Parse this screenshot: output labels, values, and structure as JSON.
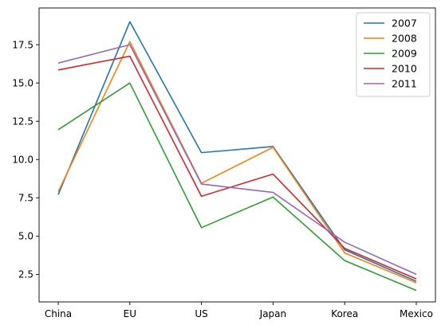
{
  "chart_data": {
    "type": "line",
    "title": "",
    "xlabel": "",
    "ylabel": "",
    "categories": [
      "China",
      "EU",
      "US",
      "Japan",
      "Korea",
      "Mexico"
    ],
    "ylim": [
      0.7,
      19.9
    ],
    "yticks": [
      2.5,
      5.0,
      7.5,
      10.0,
      12.5,
      15.0,
      17.5
    ],
    "ytick_labels": [
      "2.5",
      "5.0",
      "7.5",
      "10.0",
      "12.5",
      "15.0",
      "17.5"
    ],
    "grid": false,
    "legend_position": "top-right",
    "series": [
      {
        "name": "2007",
        "color": "#1f77b4",
        "values": [
          7.7,
          19.0,
          10.45,
          10.85,
          4.1,
          2.05
        ]
      },
      {
        "name": "2008",
        "color": "#ff7f0e",
        "values": [
          7.9,
          17.7,
          8.45,
          10.8,
          3.9,
          1.95
        ]
      },
      {
        "name": "2009",
        "color": "#2ca02c",
        "values": [
          11.95,
          15.0,
          5.55,
          7.55,
          3.4,
          1.45
        ]
      },
      {
        "name": "2010",
        "color": "#d62728",
        "values": [
          15.85,
          16.75,
          7.6,
          9.05,
          4.2,
          2.2
        ]
      },
      {
        "name": "2011",
        "color": "#9467bd",
        "values": [
          16.3,
          17.5,
          8.4,
          7.85,
          4.6,
          2.5
        ]
      }
    ]
  }
}
